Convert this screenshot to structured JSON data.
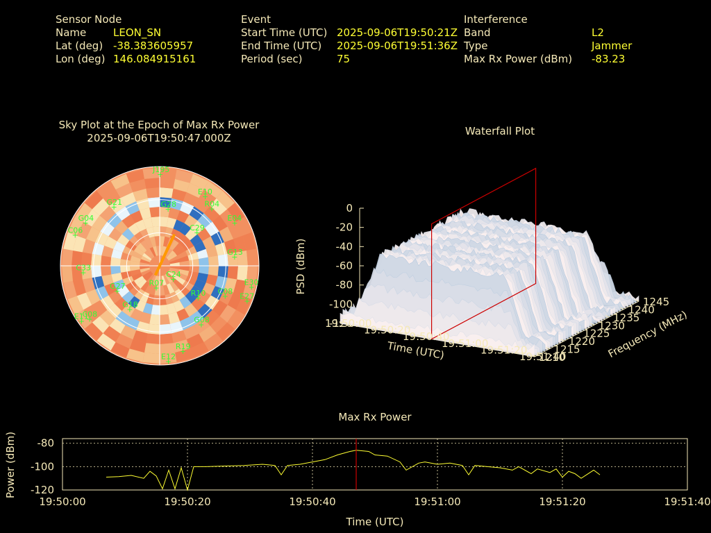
{
  "header": {
    "sensor": {
      "heading": "Sensor Node",
      "rows": [
        {
          "label": "Name",
          "value": "LEON_SN"
        },
        {
          "label": "Lat (deg)",
          "value": "-38.383605957"
        },
        {
          "label": "Lon (deg)",
          "value": "146.084915161"
        }
      ]
    },
    "event": {
      "heading": "Event",
      "rows": [
        {
          "label": "Start Time (UTC)",
          "value": "2025-09-06T19:50:21Z"
        },
        {
          "label": "End Time (UTC)",
          "value": "2025-09-06T19:51:36Z"
        },
        {
          "label": "Period (sec)",
          "value": "75"
        }
      ]
    },
    "interference": {
      "heading": "Interference",
      "rows": [
        {
          "label": "Band",
          "value": "L2"
        },
        {
          "label": "Type",
          "value": "Jammer"
        },
        {
          "label": "Max Rx Power (dBm)",
          "value": "-83.23"
        }
      ]
    }
  },
  "colors": {
    "label": "#f5e9b8",
    "value": "#ffff33",
    "satellite": "#33ff33",
    "power_line": "#ffff33",
    "marker": "#cc0000",
    "jammer_direction": "#ff9900"
  },
  "chart_data": [
    {
      "type": "scatter",
      "title": "Sky Plot at the Epoch of Max Rx Power",
      "subtitle": "2025-09-06T19:50:47.000Z",
      "satellites": [
        {
          "id": "J195",
          "az": 0,
          "el": 7
        },
        {
          "id": "E10",
          "az": 33,
          "el": 15
        },
        {
          "id": "G21",
          "az": 322,
          "el": 22
        },
        {
          "id": "G28",
          "az": 8,
          "el": 38
        },
        {
          "id": "R04",
          "az": 42,
          "el": 20
        },
        {
          "id": "E04",
          "az": 60,
          "el": 12
        },
        {
          "id": "G04",
          "az": 300,
          "el": 12
        },
        {
          "id": "C06",
          "az": 290,
          "el": 8
        },
        {
          "id": "C29",
          "az": 48,
          "el": 45
        },
        {
          "id": "G13",
          "az": 83,
          "el": 22
        },
        {
          "id": "C33",
          "az": 265,
          "el": 20
        },
        {
          "id": "C24",
          "az": 135,
          "el": 73
        },
        {
          "id": "R07",
          "az": 190,
          "el": 70
        },
        {
          "id": "G18",
          "az": 215,
          "el": 42
        },
        {
          "id": "C08",
          "az": 233,
          "el": 10
        },
        {
          "id": "E11",
          "az": 235,
          "el": 3
        },
        {
          "id": "R10",
          "az": 130,
          "el": 45
        },
        {
          "id": "C08",
          "az": 115,
          "el": 25
        },
        {
          "id": "E27",
          "az": 112,
          "el": 5
        },
        {
          "id": "E30",
          "az": 103,
          "el": 5
        },
        {
          "id": "G08",
          "az": 145,
          "el": 25
        },
        {
          "id": "R19",
          "az": 165,
          "el": 10
        },
        {
          "id": "E12",
          "az": 175,
          "el": 3
        },
        {
          "id": "G27",
          "az": 240,
          "el": 45
        }
      ],
      "jammer_direction_az": 25
    },
    {
      "type": "surface",
      "title": "Waterfall Plot",
      "xlabel": "Time (UTC)",
      "ylabel": "Frequency (MHz)",
      "zlabel": "PSD (dBm)",
      "x_ticks": [
        "19:50:00",
        "19:50:20",
        "19:50:40",
        "19:51:00",
        "19:51:20",
        "19:51:40"
      ],
      "y_ticks": [
        "1210",
        "1215",
        "1220",
        "1225",
        "1230",
        "1235",
        "1240",
        "1245"
      ],
      "z_ticks": [
        "0",
        "-20",
        "-40",
        "-60",
        "-80",
        "-100",
        "-120"
      ],
      "xlim": [
        "19:50:00",
        "19:51:40"
      ],
      "ylim": [
        1210,
        1245
      ],
      "zlim": [
        -120,
        0
      ],
      "psd_plateau_dbm": -50,
      "psd_noise_floor_dbm": -110,
      "marker_time": "19:50:47"
    },
    {
      "type": "line",
      "title": "Max Rx Power",
      "xlabel": "Time (UTC)",
      "ylabel": "Power (dBm)",
      "x_ticks": [
        "19:50:00",
        "19:50:20",
        "19:50:40",
        "19:51:00",
        "19:51:20",
        "19:51:40"
      ],
      "y_ticks": [
        "-80",
        "-100",
        "-120"
      ],
      "xlim": [
        "19:50:00",
        "19:51:40"
      ],
      "ylim": [
        -120,
        -76
      ],
      "grid": true,
      "marker_time": "19:50:47",
      "series": [
        {
          "points": [
            [
              "19:50:07",
              -109
            ],
            [
              "19:50:09",
              -108.5
            ],
            [
              "19:50:11",
              -107.5
            ],
            [
              "19:50:13",
              -110
            ],
            [
              "19:50:14",
              -104
            ],
            [
              "19:50:15",
              -108
            ],
            [
              "19:50:16",
              -119
            ],
            [
              "19:50:17",
              -103
            ],
            [
              "19:50:18",
              -119
            ],
            [
              "19:50:19",
              -101
            ],
            [
              "19:50:20",
              -120
            ],
            [
              "19:50:21",
              -100
            ],
            [
              "19:50:23",
              -100
            ],
            [
              "19:50:26",
              -99.5
            ],
            [
              "19:50:29",
              -99
            ],
            [
              "19:50:32",
              -98
            ],
            [
              "19:50:34",
              -99
            ],
            [
              "19:50:35",
              -107
            ],
            [
              "19:50:36",
              -99
            ],
            [
              "19:50:38",
              -98
            ],
            [
              "19:50:40",
              -96
            ],
            [
              "19:50:42",
              -94
            ],
            [
              "19:50:44",
              -90
            ],
            [
              "19:50:46",
              -87
            ],
            [
              "19:50:47",
              -86
            ],
            [
              "19:50:49",
              -87
            ],
            [
              "19:50:50",
              -90
            ],
            [
              "19:50:52",
              -91
            ],
            [
              "19:50:54",
              -96
            ],
            [
              "19:50:55",
              -103
            ],
            [
              "19:50:57",
              -97
            ],
            [
              "19:50:58",
              -96
            ],
            [
              "19:51:00",
              -98
            ],
            [
              "19:51:02",
              -97
            ],
            [
              "19:51:04",
              -99
            ],
            [
              "19:51:05",
              -107
            ],
            [
              "19:51:06",
              -99
            ],
            [
              "19:51:08",
              -100
            ],
            [
              "19:51:10",
              -101
            ],
            [
              "19:51:12",
              -103
            ],
            [
              "19:51:13",
              -100
            ],
            [
              "19:51:15",
              -106
            ],
            [
              "19:51:16",
              -102
            ],
            [
              "19:51:18",
              -105
            ],
            [
              "19:51:19",
              -102
            ],
            [
              "19:51:20",
              -109
            ],
            [
              "19:51:21",
              -104
            ],
            [
              "19:51:22",
              -106
            ],
            [
              "19:51:23",
              -110
            ],
            [
              "19:51:25",
              -103
            ],
            [
              "19:51:26",
              -107
            ]
          ]
        }
      ]
    }
  ]
}
